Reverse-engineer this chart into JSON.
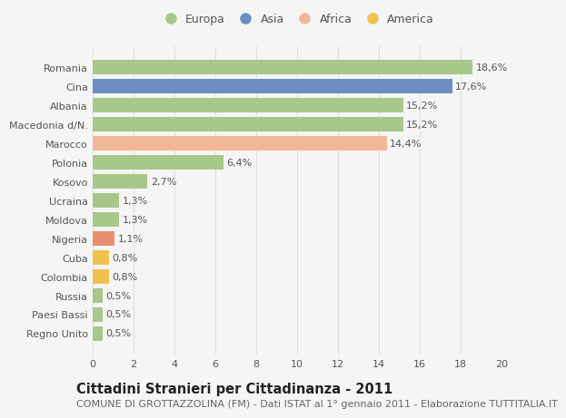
{
  "categories": [
    "Regno Unito",
    "Paesi Bassi",
    "Russia",
    "Colombia",
    "Cuba",
    "Nigeria",
    "Moldova",
    "Ucraina",
    "Kosovo",
    "Polonia",
    "Marocco",
    "Macedonia d/N.",
    "Albania",
    "Cina",
    "Romania"
  ],
  "values": [
    0.5,
    0.5,
    0.5,
    0.8,
    0.8,
    1.1,
    1.3,
    1.3,
    2.7,
    6.4,
    14.4,
    15.2,
    15.2,
    17.6,
    18.6
  ],
  "labels": [
    "0,5%",
    "0,5%",
    "0,5%",
    "0,8%",
    "0,8%",
    "1,1%",
    "1,3%",
    "1,3%",
    "2,7%",
    "6,4%",
    "14,4%",
    "15,2%",
    "15,2%",
    "17,6%",
    "18,6%"
  ],
  "colors": [
    "#a8c78a",
    "#a8c78a",
    "#a8c78a",
    "#f0c050",
    "#f0c050",
    "#e89070",
    "#a8c78a",
    "#a8c78a",
    "#a8c78a",
    "#a8c78a",
    "#f0b896",
    "#a8c78a",
    "#a8c78a",
    "#6b8ec4",
    "#a8c78a"
  ],
  "legend_labels": [
    "Europa",
    "Asia",
    "Africa",
    "America"
  ],
  "legend_colors": [
    "#a8c78a",
    "#6b8ec4",
    "#f0b896",
    "#f0c050"
  ],
  "title": "Cittadini Stranieri per Cittadinanza - 2011",
  "subtitle": "COMUNE DI GROTTAZZOLINA (FM) - Dati ISTAT al 1° gennaio 2011 - Elaborazione TUTTITALIA.IT",
  "xlim": [
    0,
    20
  ],
  "xticks": [
    0,
    2,
    4,
    6,
    8,
    10,
    12,
    14,
    16,
    18,
    20
  ],
  "bg_color": "#f5f5f5",
  "grid_color": "#e0e0e0",
  "bar_height": 0.75,
  "title_fontsize": 10.5,
  "subtitle_fontsize": 8,
  "label_fontsize": 8,
  "tick_fontsize": 8,
  "legend_fontsize": 9
}
